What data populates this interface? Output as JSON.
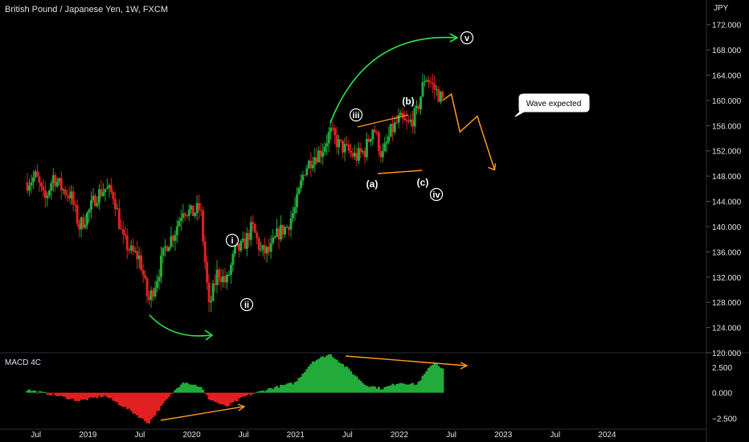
{
  "chart_title": "British Pound / Japanese Yen, 1W, FXCM",
  "currency_unit": "JPY",
  "price_ticks": [
    "172.000",
    "168.000",
    "164.000",
    "160.000",
    "156.000",
    "152.000",
    "148.000",
    "144.000",
    "140.000",
    "136.000",
    "132.000",
    "128.000",
    "124.000",
    "120.000"
  ],
  "time_ticks": [
    "Jul",
    "2019",
    "Jul",
    "2020",
    "Jul",
    "2021",
    "Jul",
    "2022",
    "Jul",
    "2023",
    "Jul",
    "2024"
  ],
  "indicator": {
    "name": "MACD 4C",
    "ticks": [
      "2.500",
      "0.000",
      "−2.500"
    ]
  },
  "annotations": {
    "wave_labels": [
      "i",
      "ii",
      "iii",
      "iv",
      "v",
      "(a)",
      "(b)",
      "(c)"
    ],
    "callout": "Wave expected"
  },
  "colors": {
    "up": "#22ab3a",
    "down": "#e02020",
    "arrow_green": "#2ee84a",
    "arrow_orange": "#ff9a1f",
    "background": "#000000"
  },
  "chart_data": {
    "type": "candlestick",
    "symbol": "GBPJPY",
    "timeframe": "1W",
    "ylim": [
      120,
      174
    ],
    "price_path": [
      [
        "2018-06",
        147
      ],
      [
        "2018-07",
        148
      ],
      [
        "2018-08",
        144
      ],
      [
        "2018-09",
        148
      ],
      [
        "2018-10",
        146
      ],
      [
        "2018-11",
        145
      ],
      [
        "2018-12",
        140
      ],
      [
        "2019-01",
        142
      ],
      [
        "2019-02",
        145
      ],
      [
        "2019-03",
        146
      ],
      [
        "2019-04",
        145
      ],
      [
        "2019-05",
        138
      ],
      [
        "2019-06",
        136
      ],
      [
        "2019-07",
        135
      ],
      [
        "2019-08",
        128
      ],
      [
        "2019-09",
        132
      ],
      [
        "2019-10",
        137
      ],
      [
        "2019-11",
        139
      ],
      [
        "2019-12",
        143
      ],
      [
        "2020-01",
        142
      ],
      [
        "2020-02",
        143
      ],
      [
        "2020-03",
        127
      ],
      [
        "2020-04",
        133
      ],
      [
        "2020-05",
        131
      ],
      [
        "2020-06",
        136
      ],
      [
        "2020-07",
        137
      ],
      [
        "2020-08",
        140
      ],
      [
        "2020-09",
        136
      ],
      [
        "2020-10",
        136
      ],
      [
        "2020-11",
        139
      ],
      [
        "2020-12",
        140
      ],
      [
        "2021-01",
        143
      ],
      [
        "2021-02",
        149
      ],
      [
        "2021-03",
        151
      ],
      [
        "2021-04",
        152
      ],
      [
        "2021-05",
        155
      ],
      [
        "2021-06",
        153
      ],
      [
        "2021-07",
        152
      ],
      [
        "2021-08",
        151
      ],
      [
        "2021-09",
        152
      ],
      [
        "2021-10",
        156
      ],
      [
        "2021-11",
        151
      ],
      [
        "2021-12",
        155
      ],
      [
        "2022-01",
        157
      ],
      [
        "2022-02",
        156
      ],
      [
        "2022-03",
        158
      ],
      [
        "2022-04",
        164
      ],
      [
        "2022-05",
        162
      ],
      [
        "2022-06",
        160
      ]
    ],
    "projection": [
      [
        "2022-06",
        160
      ],
      [
        "2022-07",
        161
      ],
      [
        "2022-08",
        155
      ],
      [
        "2022-10",
        157.5
      ],
      [
        "2022-12",
        149
      ]
    ],
    "macd": {
      "ylim": [
        -3.5,
        4
      ],
      "path": [
        [
          "2018-06",
          0.3
        ],
        [
          "2018-09",
          -0.2
        ],
        [
          "2018-12",
          -0.8
        ],
        [
          "2019-03",
          -0.3
        ],
        [
          "2019-06",
          -1.8
        ],
        [
          "2019-08",
          -3.0
        ],
        [
          "2019-10",
          -0.8
        ],
        [
          "2019-12",
          1.1
        ],
        [
          "2020-02",
          0.6
        ],
        [
          "2020-03",
          -0.6
        ],
        [
          "2020-05",
          -1.4
        ],
        [
          "2020-07",
          -0.4
        ],
        [
          "2020-10",
          0.4
        ],
        [
          "2021-01",
          1.0
        ],
        [
          "2021-03",
          3.1
        ],
        [
          "2021-05",
          3.8
        ],
        [
          "2021-07",
          2.4
        ],
        [
          "2021-09",
          0.8
        ],
        [
          "2021-11",
          0.4
        ],
        [
          "2022-01",
          1.0
        ],
        [
          "2022-03",
          0.8
        ],
        [
          "2022-05",
          3.0
        ],
        [
          "2022-06",
          2.4
        ]
      ]
    }
  }
}
